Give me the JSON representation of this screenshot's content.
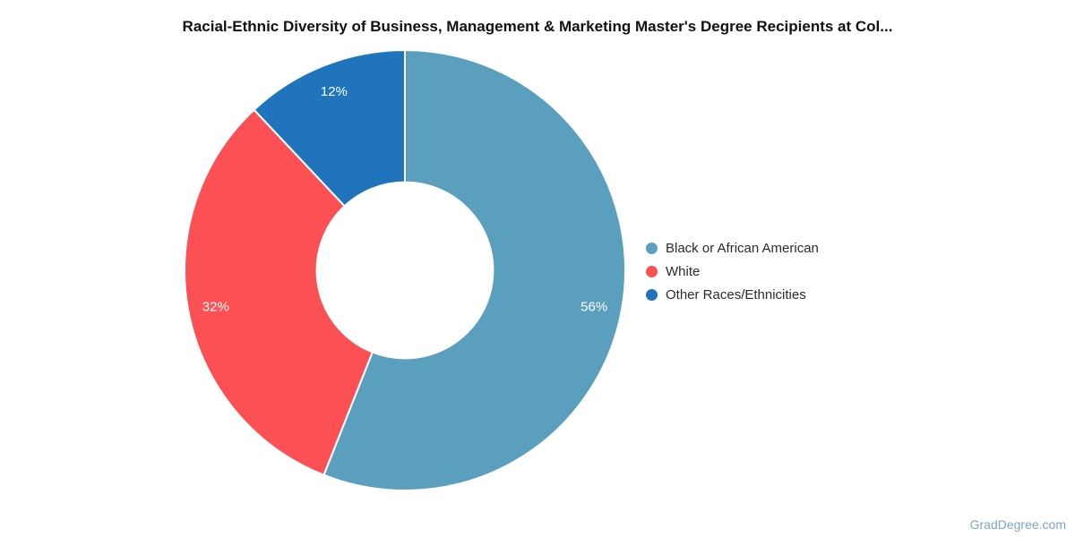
{
  "title": "Racial-Ethnic Diversity of Business, Management & Marketing Master's Degree Recipients at Col...",
  "watermark": "GradDegree.com",
  "chart_data": {
    "type": "pie",
    "subtype": "donut",
    "title": "Racial-Ethnic Diversity of Business, Management & Marketing Master's Degree Recipients at Col...",
    "labels": [
      "Black or African American",
      "White",
      "Other Races/Ethnicities"
    ],
    "values": [
      56,
      32,
      12
    ],
    "slice_labels": [
      "56%",
      "32%",
      "12%"
    ],
    "colors": [
      "#5b9fbe",
      "#fb5154",
      "#1f74bb"
    ],
    "slice_label_color": "#ffffff",
    "legend_position": "right",
    "start_angle_deg": 0,
    "direction": "clockwise",
    "donut_hole_ratio": 0.4,
    "slice_border_color": "#ffffff"
  }
}
